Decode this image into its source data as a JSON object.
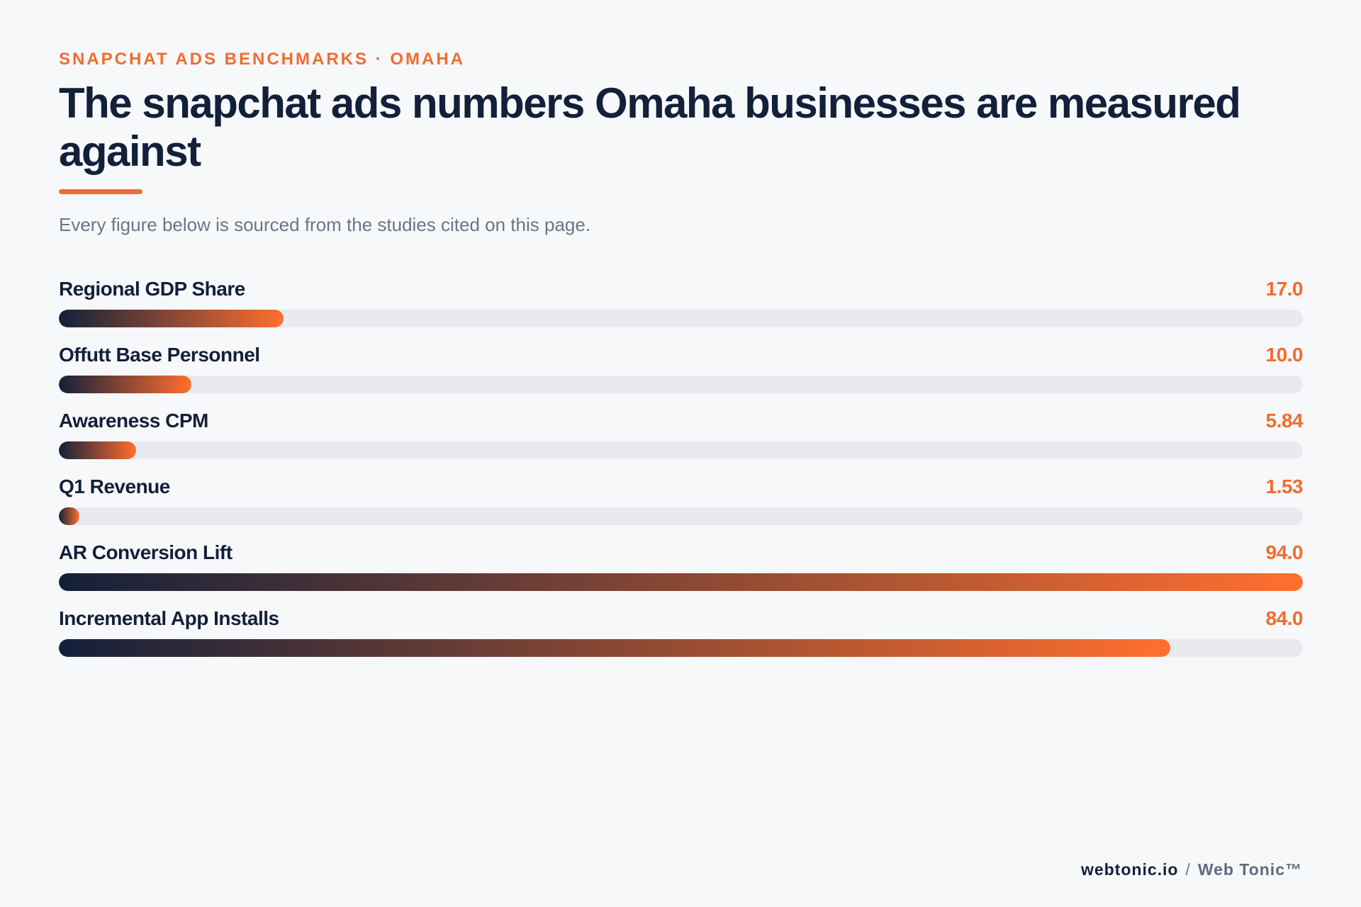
{
  "eyebrow": "SNAPCHAT ADS BENCHMARKS · OMAHA",
  "title": "The snapchat ads numbers Omaha businesses are measured against",
  "subtitle": "Every figure below is sourced from the studies cited on this page.",
  "colors": {
    "accent": "#f36c2c",
    "navy": "#13203a",
    "track": "#e8eaf0",
    "background": "#f7f8fa"
  },
  "chart_data": {
    "type": "bar",
    "orientation": "horizontal",
    "xlim": [
      0,
      94.0
    ],
    "grid": false,
    "categories": [
      "Regional GDP Share",
      "Offutt Base Personnel",
      "Awareness CPM",
      "Q1 Revenue",
      "AR Conversion Lift",
      "Incremental App Installs"
    ],
    "values": [
      17.0,
      10.0,
      5.84,
      1.53,
      94.0,
      84.0
    ],
    "value_labels": [
      "17.0",
      "10.0",
      "5.84",
      "1.53",
      "94.0",
      "84.0"
    ]
  },
  "footer": {
    "domain": "webtonic.io",
    "separator": "/",
    "brand": "Web Tonic™"
  }
}
